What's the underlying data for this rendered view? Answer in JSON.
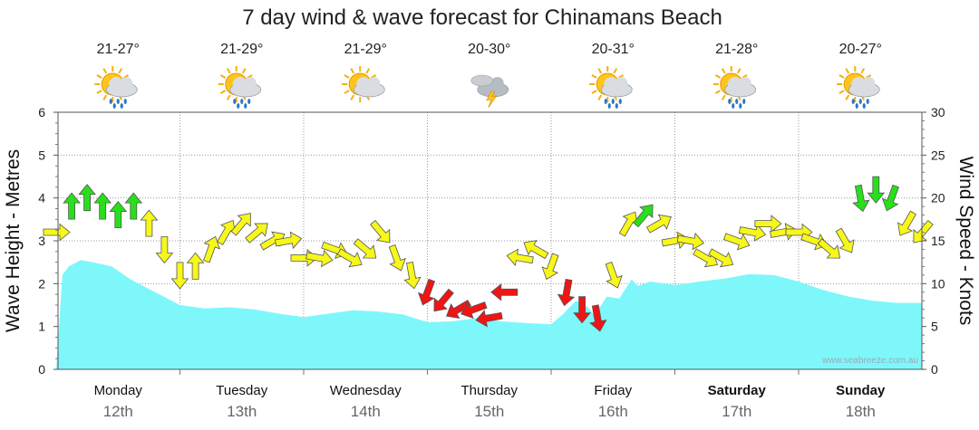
{
  "chart_data": {
    "type": "area",
    "title": "7 day wind & wave forecast for Chinamans Beach",
    "ylabel_left": "Wave Height - Metres",
    "ylabel_right": "Wind Speed - Knots",
    "ylim_left": [
      0,
      6
    ],
    "ylim_right": [
      0,
      30
    ],
    "yticks_left": [
      "0",
      "1",
      "2",
      "3",
      "4",
      "5",
      "6"
    ],
    "yticks_right": [
      "0",
      "5",
      "10",
      "15",
      "20",
      "25",
      "30"
    ],
    "grid": true,
    "watermark": "www.seabreeze.com.au",
    "days": [
      {
        "name": "Monday",
        "date": "12th",
        "temp": "21-27°",
        "icon": "sun-cloud-rain-icon",
        "bold": false
      },
      {
        "name": "Tuesday",
        "date": "13th",
        "temp": "21-29°",
        "icon": "sun-cloud-rain-icon",
        "bold": false
      },
      {
        "name": "Wednesday",
        "date": "14th",
        "temp": "21-29°",
        "icon": "sun-cloud-icon",
        "bold": false
      },
      {
        "name": "Thursday",
        "date": "15th",
        "temp": "20-30°",
        "icon": "storm-cloud-icon",
        "bold": false
      },
      {
        "name": "Friday",
        "date": "16th",
        "temp": "20-31°",
        "icon": "sun-cloud-rain-icon",
        "bold": false
      },
      {
        "name": "Saturday",
        "date": "17th",
        "temp": "21-28°",
        "icon": "sun-cloud-rain-icon",
        "bold": true
      },
      {
        "name": "Sunday",
        "date": "18th",
        "temp": "20-27°",
        "icon": "sun-cloud-rain-icon",
        "bold": true
      }
    ],
    "wave_series": {
      "x_days": [
        0,
        0.05,
        0.1,
        0.2,
        0.3,
        0.45,
        0.6,
        0.8,
        1.0,
        1.2,
        1.4,
        1.6,
        1.8,
        2.0,
        2.2,
        2.4,
        2.6,
        2.8,
        3.0,
        3.2,
        3.4,
        3.6,
        3.8,
        4.0,
        4.1,
        4.2,
        4.3,
        4.35,
        4.45,
        4.55,
        4.65,
        4.7,
        4.8,
        5.0,
        5.2,
        5.4,
        5.6,
        5.8,
        6.0,
        6.2,
        6.4,
        6.6,
        6.8,
        7.0
      ],
      "values": [
        0,
        2.2,
        2.4,
        2.55,
        2.5,
        2.4,
        2.1,
        1.8,
        1.5,
        1.42,
        1.45,
        1.4,
        1.3,
        1.22,
        1.3,
        1.38,
        1.35,
        1.28,
        1.1,
        1.12,
        1.2,
        1.12,
        1.08,
        1.05,
        1.3,
        1.6,
        1.45,
        1.25,
        1.7,
        1.65,
        2.1,
        1.95,
        2.05,
        1.97,
        2.05,
        2.12,
        2.22,
        2.2,
        2.05,
        1.85,
        1.7,
        1.6,
        1.55,
        1.55
      ]
    },
    "wind_series": {
      "x_days": [
        0,
        0.125,
        0.25,
        0.375,
        0.5,
        0.625,
        0.75,
        0.875,
        1,
        1.125,
        1.25,
        1.375,
        1.5,
        1.625,
        1.75,
        1.875,
        2,
        2.125,
        2.25,
        2.375,
        2.5,
        2.625,
        2.75,
        2.875,
        3,
        3.125,
        3.25,
        3.375,
        3.5,
        3.625,
        3.75,
        3.875,
        4,
        4.125,
        4.25,
        4.375,
        4.5,
        4.625,
        4.75,
        4.875,
        5,
        5.125,
        5.25,
        5.375,
        5.5,
        5.625,
        5.75,
        5.875,
        6,
        6.125,
        6.25,
        6.375,
        6.5,
        6.625,
        6.75,
        6.875,
        7
      ],
      "values": [
        16,
        19,
        20,
        19,
        18,
        19,
        17,
        14,
        11,
        12,
        14,
        16,
        17,
        16,
        15,
        15,
        13,
        13,
        14,
        13,
        14,
        16,
        13,
        11,
        9,
        8,
        7,
        7,
        6,
        9,
        13,
        14,
        12,
        9,
        7,
        6,
        11,
        17,
        18,
        17,
        15,
        15,
        13,
        13,
        15,
        16,
        17,
        16,
        16,
        15,
        14,
        15,
        20,
        21,
        20,
        17,
        16
      ],
      "dir_deg": [
        90,
        0,
        0,
        0,
        0,
        0,
        0,
        180,
        180,
        0,
        20,
        30,
        40,
        50,
        60,
        80,
        90,
        100,
        110,
        120,
        130,
        140,
        160,
        170,
        200,
        220,
        240,
        250,
        260,
        270,
        280,
        300,
        200,
        190,
        180,
        170,
        160,
        30,
        40,
        60,
        80,
        100,
        120,
        120,
        110,
        100,
        90,
        80,
        90,
        110,
        130,
        150,
        170,
        180,
        200,
        210,
        220
      ]
    }
  }
}
